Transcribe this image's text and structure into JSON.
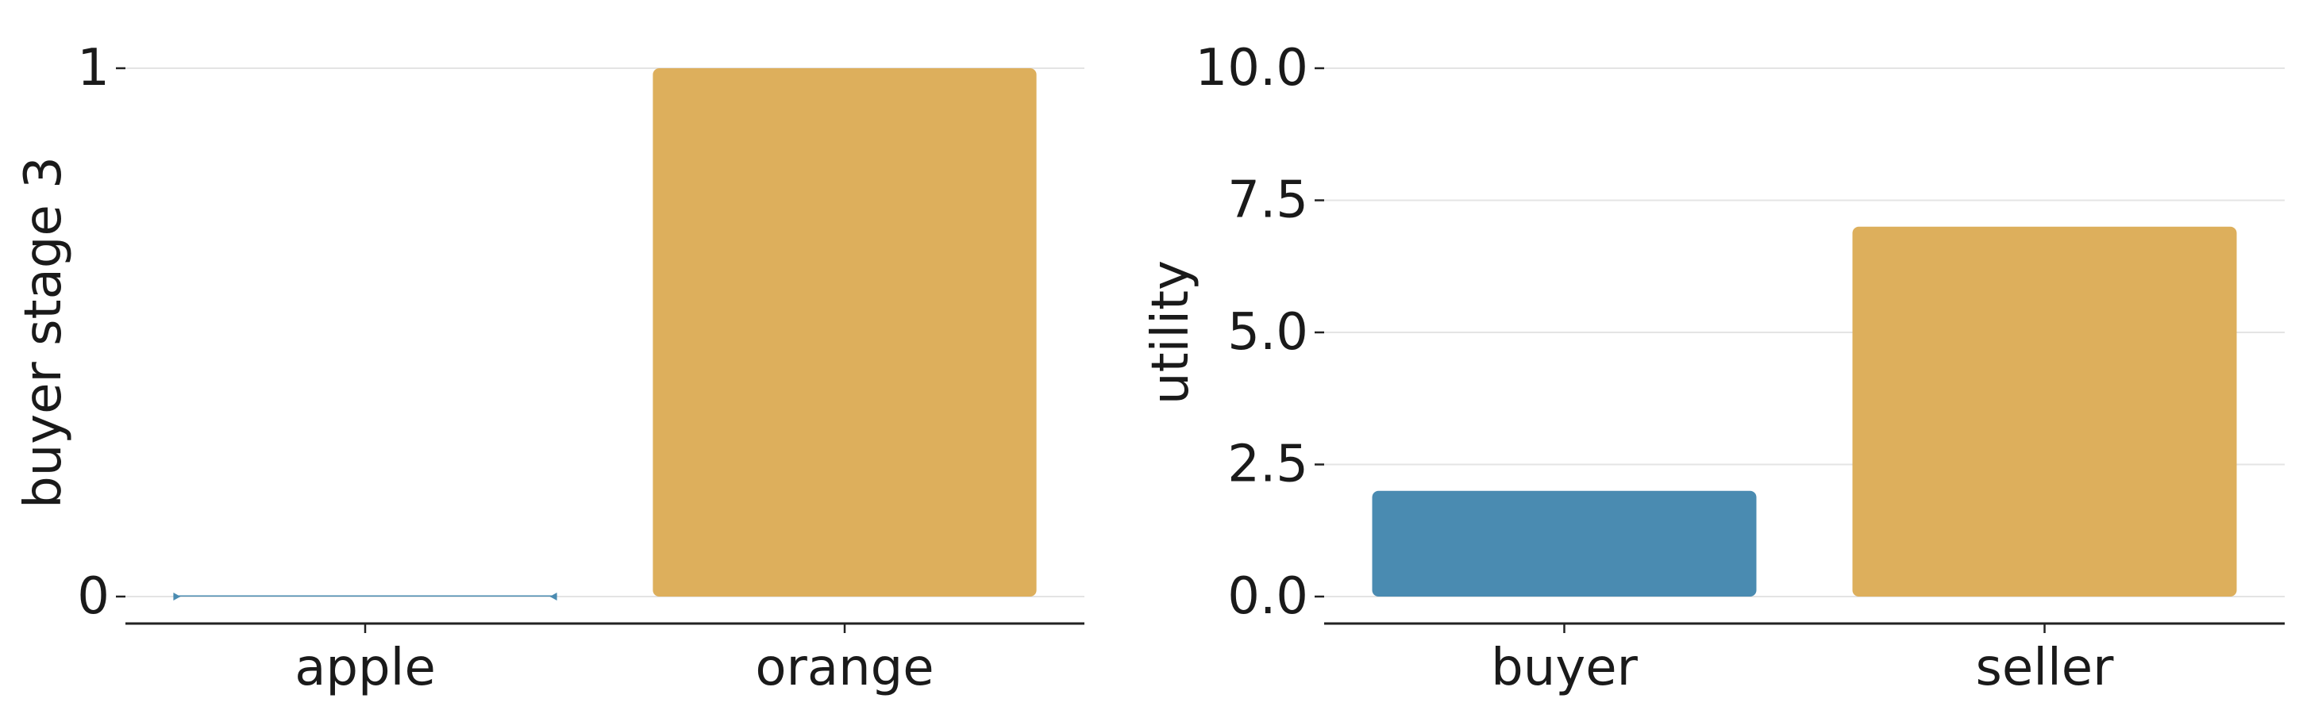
{
  "colors": {
    "blue": "#4a8bb1",
    "gold": "#ddaf5c"
  },
  "chart_data": [
    {
      "type": "bar",
      "title": "",
      "xlabel": "",
      "ylabel": "buyer stage 3",
      "categories": [
        "apple",
        "orange"
      ],
      "values": [
        0,
        1
      ],
      "bar_colors": [
        "#4a8bb1",
        "#ddaf5c"
      ],
      "ylim": [
        0,
        1
      ],
      "yticks": [
        0,
        1
      ],
      "ytick_labels": [
        "0",
        "1"
      ],
      "grid": true
    },
    {
      "type": "bar",
      "title": "",
      "xlabel": "",
      "ylabel": "utility",
      "categories": [
        "buyer",
        "seller"
      ],
      "values": [
        2.0,
        7.0
      ],
      "bar_colors": [
        "#4a8bb1",
        "#ddaf5c"
      ],
      "ylim": [
        0,
        10
      ],
      "yticks": [
        0,
        2.5,
        5,
        7.5,
        10
      ],
      "ytick_labels": [
        "0.0",
        "2.5",
        "5.0",
        "7.5",
        "10.0"
      ],
      "grid": true
    }
  ]
}
